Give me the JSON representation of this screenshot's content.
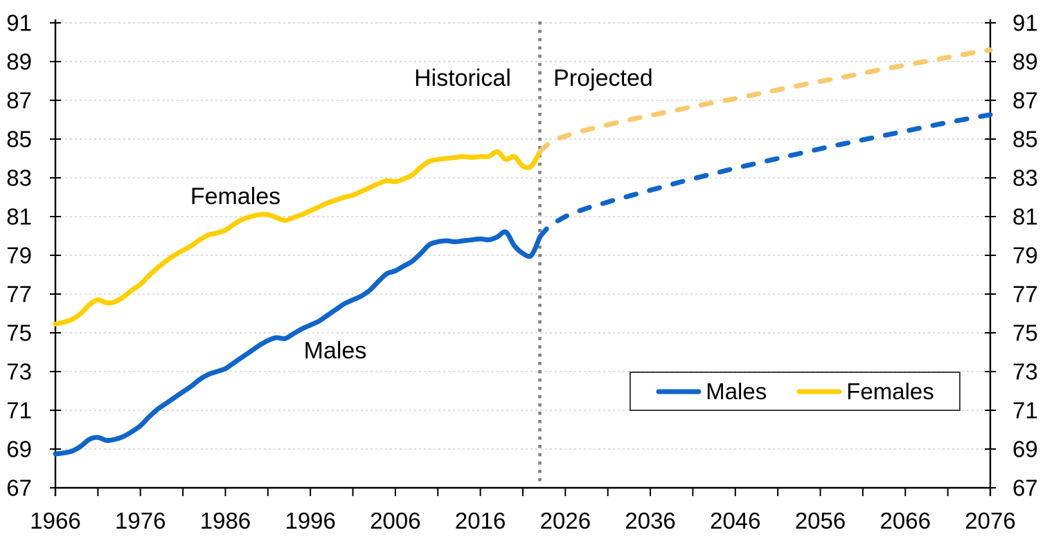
{
  "chart_data": {
    "type": "line",
    "title": "",
    "annotations": {
      "historical_label": "Historical",
      "projected_label": "Projected",
      "females_line_label": "Females",
      "males_line_label": "Males"
    },
    "axes": {
      "ylim": [
        67,
        91
      ],
      "yticks": [
        67,
        69,
        71,
        73,
        75,
        77,
        79,
        81,
        83,
        85,
        87,
        89,
        91
      ],
      "y_axis_sides": "both",
      "xlim": [
        1966,
        2076
      ],
      "xtick_labels": [
        1966,
        1976,
        1986,
        1996,
        2006,
        2016,
        2026,
        2036,
        2046,
        2056,
        2066,
        2076
      ],
      "x_minor_tick_step": 5,
      "grid": "horizontal-dashed"
    },
    "divider": {
      "year": 2023,
      "color": "#7f7f7f",
      "style": "square-dotted"
    },
    "series": [
      {
        "name": "Males",
        "color": "#1165C8",
        "historical": {
          "start_year": 1966,
          "style": "solid",
          "values": [
            68.75,
            68.8,
            68.9,
            69.15,
            69.5,
            69.6,
            69.45,
            69.5,
            69.65,
            69.9,
            70.2,
            70.65,
            71.05,
            71.35,
            71.65,
            71.95,
            72.25,
            72.6,
            72.85,
            73.0,
            73.15,
            73.45,
            73.75,
            74.05,
            74.35,
            74.6,
            74.75,
            74.7,
            74.95,
            75.2,
            75.4,
            75.6,
            75.9,
            76.2,
            76.5,
            76.7,
            76.9,
            77.2,
            77.65,
            78.05,
            78.2,
            78.45,
            78.7,
            79.1,
            79.55,
            79.7,
            79.75,
            79.7,
            79.75,
            79.8,
            79.85,
            79.8,
            79.95,
            80.2,
            79.5,
            79.1,
            79.0,
            79.95
          ]
        },
        "projected": {
          "start_year": 2023,
          "style": "dashed",
          "color": "#1165C8",
          "values": [
            79.95,
            80.45,
            80.75,
            81.0,
            81.2,
            81.35,
            81.5,
            81.62,
            81.75,
            81.88,
            82.0,
            82.12,
            82.24,
            82.36,
            82.48,
            82.6,
            82.72,
            82.84,
            82.95,
            83.06,
            83.17,
            83.28,
            83.39,
            83.5,
            83.6,
            83.7,
            83.8,
            83.9,
            84.0,
            84.1,
            84.2,
            84.3,
            84.4,
            84.5,
            84.6,
            84.69,
            84.78,
            84.87,
            84.96,
            85.05,
            85.14,
            85.23,
            85.32,
            85.41,
            85.5,
            85.59,
            85.68,
            85.77,
            85.86,
            85.94,
            86.02,
            86.1,
            86.18,
            86.26
          ]
        }
      },
      {
        "name": "Females",
        "color": "#FFCF02",
        "historical": {
          "start_year": 1966,
          "style": "solid",
          "values": [
            75.45,
            75.55,
            75.7,
            76.0,
            76.45,
            76.7,
            76.55,
            76.6,
            76.85,
            77.2,
            77.5,
            77.95,
            78.35,
            78.7,
            79.0,
            79.25,
            79.5,
            79.8,
            80.05,
            80.15,
            80.3,
            80.6,
            80.85,
            81.0,
            81.1,
            81.1,
            80.95,
            80.8,
            80.95,
            81.1,
            81.3,
            81.5,
            81.7,
            81.85,
            82.0,
            82.1,
            82.3,
            82.5,
            82.7,
            82.85,
            82.8,
            82.95,
            83.15,
            83.55,
            83.85,
            83.95,
            84.0,
            84.05,
            84.1,
            84.05,
            84.1,
            84.1,
            84.35,
            83.95,
            84.1,
            83.6,
            83.6,
            84.35
          ]
        },
        "projected": {
          "start_year": 2023,
          "style": "dashed",
          "color": "#F9C86F",
          "values": [
            84.35,
            84.75,
            85.0,
            85.15,
            85.3,
            85.42,
            85.53,
            85.64,
            85.74,
            85.84,
            85.94,
            86.04,
            86.13,
            86.22,
            86.31,
            86.4,
            86.49,
            86.58,
            86.67,
            86.76,
            86.85,
            86.93,
            87.01,
            87.09,
            87.18,
            87.27,
            87.36,
            87.45,
            87.54,
            87.63,
            87.72,
            87.81,
            87.9,
            87.98,
            88.06,
            88.14,
            88.22,
            88.31,
            88.4,
            88.49,
            88.58,
            88.66,
            88.74,
            88.82,
            88.9,
            88.98,
            89.06,
            89.14,
            89.22,
            89.3,
            89.38,
            89.46,
            89.54,
            89.6
          ]
        }
      }
    ],
    "legend": {
      "position": "bottom-right-inside",
      "items": [
        {
          "label": "Males",
          "color": "#1165C8"
        },
        {
          "label": "Females",
          "color": "#FFCF02"
        }
      ]
    }
  }
}
